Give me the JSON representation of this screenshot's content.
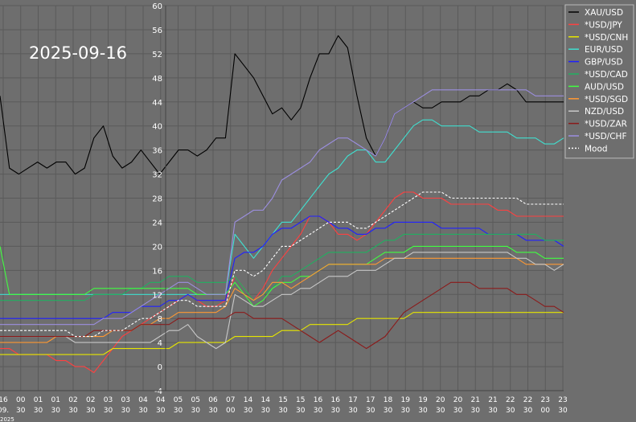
{
  "date_stamp": "2025-09-16",
  "chart_data": {
    "type": "line",
    "title": "",
    "xlabel": "",
    "ylabel": "",
    "ylim": [
      -4,
      60
    ],
    "yticks": [
      -4,
      0,
      4,
      8,
      12,
      16,
      20,
      24,
      28,
      32,
      36,
      40,
      44,
      48,
      52,
      56,
      60
    ],
    "grid": true,
    "legend_position": "top-right",
    "colors": {
      "background": "#6e6e6e",
      "grid": "#5a5a5a",
      "text": "#ffffff"
    },
    "xticks": [
      {
        "day": "16",
        "time": "09."
      },
      {
        "day": "00",
        "time": "30"
      },
      {
        "day": "01",
        "time": "30"
      },
      {
        "day": "01",
        "time": "30"
      },
      {
        "day": "02",
        "time": "30"
      },
      {
        "day": "02",
        "time": "30"
      },
      {
        "day": "03",
        "time": "30"
      },
      {
        "day": "03",
        "time": "30"
      },
      {
        "day": "04",
        "time": "30"
      },
      {
        "day": "04",
        "time": "30"
      },
      {
        "day": "05",
        "time": "30"
      },
      {
        "day": "05",
        "time": "30"
      },
      {
        "day": "06",
        "time": "30"
      },
      {
        "day": "07",
        "time": "00"
      },
      {
        "day": "14",
        "time": "30"
      },
      {
        "day": "14",
        "time": "30"
      },
      {
        "day": "15",
        "time": "30"
      },
      {
        "day": "15",
        "time": "30"
      },
      {
        "day": "16",
        "time": "30"
      },
      {
        "day": "16",
        "time": "30"
      },
      {
        "day": "17",
        "time": "30"
      },
      {
        "day": "17",
        "time": "30"
      },
      {
        "day": "18",
        "time": "30"
      },
      {
        "day": "19",
        "time": "30"
      },
      {
        "day": "19",
        "time": "30"
      },
      {
        "day": "20",
        "time": "30"
      },
      {
        "day": "20",
        "time": "30"
      },
      {
        "day": "21",
        "time": "30"
      },
      {
        "day": "21",
        "time": "30"
      },
      {
        "day": "22",
        "time": "30"
      },
      {
        "day": "22",
        "time": "30"
      },
      {
        "day": "23",
        "time": "00"
      },
      {
        "day": "23",
        "time": "30"
      }
    ],
    "xtick_edge_label": "2025",
    "series": [
      {
        "name": "XAU/USD",
        "color": "#000000",
        "values": [
          45,
          33,
          32,
          33,
          34,
          33,
          34,
          34,
          32,
          33,
          38,
          40,
          35,
          33,
          34,
          36,
          34,
          32,
          34,
          36,
          36,
          35,
          36,
          38,
          38,
          52,
          50,
          48,
          45,
          42,
          43,
          41,
          43,
          48,
          52,
          52,
          55,
          53,
          45,
          38,
          35,
          38,
          42,
          43,
          44,
          43,
          43,
          44,
          44,
          44,
          45,
          45,
          46,
          46,
          47,
          46,
          44,
          44,
          44,
          44,
          44
        ]
      },
      {
        "name": "*USD/JPY",
        "color": "#ff4040",
        "values": [
          3,
          3,
          2,
          2,
          2,
          2,
          1,
          1,
          0,
          0,
          -1,
          1,
          3,
          5,
          6,
          7,
          8,
          9,
          10,
          11,
          12,
          11,
          10,
          10,
          11,
          15,
          13,
          11,
          13,
          16,
          18,
          20,
          22,
          25,
          25,
          24,
          22,
          22,
          21,
          22,
          24,
          26,
          28,
          29,
          29,
          28,
          28,
          28,
          27,
          27,
          27,
          27,
          27,
          26,
          26,
          25,
          25,
          25,
          25,
          25,
          25
        ]
      },
      {
        "name": "*USD/CNH",
        "color": "#e6e600",
        "values": [
          2,
          2,
          2,
          2,
          2,
          2,
          2,
          2,
          2,
          2,
          2,
          2,
          3,
          3,
          3,
          3,
          3,
          3,
          3,
          4,
          4,
          4,
          4,
          4,
          4,
          5,
          5,
          5,
          5,
          5,
          6,
          6,
          6,
          7,
          7,
          7,
          7,
          7,
          8,
          8,
          8,
          8,
          8,
          8,
          9,
          9,
          9,
          9,
          9,
          9,
          9,
          9,
          9,
          9,
          9,
          9,
          9,
          9,
          9,
          9,
          9
        ]
      },
      {
        "name": "EUR/USD",
        "color": "#40e0d0",
        "values": [
          12,
          12,
          12,
          12,
          12,
          12,
          12,
          12,
          12,
          12,
          12,
          12,
          12,
          12,
          12,
          12,
          12,
          12,
          12,
          12,
          12,
          12,
          12,
          12,
          12,
          22,
          20,
          18,
          20,
          22,
          24,
          24,
          26,
          28,
          30,
          32,
          33,
          35,
          36,
          36,
          34,
          34,
          36,
          38,
          40,
          41,
          41,
          40,
          40,
          40,
          40,
          39,
          39,
          39,
          39,
          38,
          38,
          38,
          37,
          37,
          38
        ]
      },
      {
        "name": "GBP/USD",
        "color": "#2020ff",
        "values": [
          8,
          8,
          8,
          8,
          8,
          8,
          8,
          8,
          8,
          8,
          8,
          8,
          9,
          9,
          9,
          10,
          10,
          10,
          11,
          11,
          12,
          11,
          11,
          11,
          11,
          18,
          19,
          19,
          20,
          22,
          23,
          23,
          24,
          25,
          25,
          24,
          23,
          23,
          22,
          22,
          23,
          23,
          24,
          24,
          24,
          24,
          24,
          23,
          23,
          23,
          23,
          23,
          22,
          22,
          22,
          22,
          21,
          21,
          21,
          21,
          20
        ]
      },
      {
        "name": "*USD/CAD",
        "color": "#20b060",
        "values": [
          11,
          11,
          11,
          11,
          11,
          11,
          11,
          11,
          11,
          11,
          12,
          12,
          12,
          12,
          13,
          13,
          14,
          14,
          15,
          15,
          15,
          14,
          14,
          14,
          14,
          15,
          13,
          11,
          12,
          13,
          15,
          15,
          16,
          17,
          18,
          19,
          19,
          19,
          19,
          19,
          20,
          21,
          21,
          22,
          22,
          22,
          22,
          22,
          22,
          22,
          22,
          22,
          22,
          22,
          22,
          22,
          22,
          22,
          21,
          21,
          21
        ]
      },
      {
        "name": "AUD/USD",
        "color": "#40ff40",
        "values": [
          20,
          12,
          12,
          12,
          12,
          12,
          12,
          12,
          12,
          12,
          13,
          13,
          13,
          13,
          13,
          13,
          13,
          13,
          13,
          13,
          13,
          12,
          12,
          12,
          12,
          14,
          12,
          10,
          11,
          13,
          14,
          14,
          15,
          15,
          16,
          17,
          17,
          17,
          17,
          17,
          18,
          19,
          19,
          19,
          20,
          20,
          20,
          20,
          20,
          20,
          20,
          20,
          20,
          20,
          20,
          19,
          19,
          19,
          18,
          18,
          18
        ]
      },
      {
        "name": "*USD/SGD",
        "color": "#ff9933",
        "values": [
          4,
          4,
          4,
          4,
          4,
          4,
          5,
          5,
          5,
          5,
          5,
          5,
          6,
          6,
          6,
          7,
          7,
          8,
          8,
          9,
          9,
          9,
          9,
          9,
          10,
          13,
          12,
          11,
          12,
          14,
          14,
          13,
          14,
          15,
          16,
          17,
          17,
          17,
          17,
          17,
          17,
          18,
          18,
          18,
          18,
          18,
          18,
          18,
          18,
          18,
          18,
          18,
          18,
          18,
          18,
          18,
          17,
          17,
          17,
          17,
          17
        ]
      },
      {
        "name": "NZD/USD",
        "color": "#c8c8c8",
        "values": [
          5,
          5,
          5,
          5,
          5,
          5,
          5,
          5,
          4,
          4,
          4,
          4,
          4,
          4,
          4,
          4,
          4,
          5,
          6,
          6,
          7,
          5,
          4,
          3,
          4,
          12,
          11,
          10,
          10,
          11,
          12,
          12,
          13,
          13,
          14,
          15,
          15,
          15,
          16,
          16,
          16,
          17,
          18,
          18,
          19,
          19,
          19,
          19,
          19,
          19,
          19,
          19,
          19,
          19,
          19,
          18,
          18,
          17,
          17,
          16,
          17
        ]
      },
      {
        "name": "*USD/ZAR",
        "color": "#8b1a1a",
        "values": [
          5,
          5,
          5,
          5,
          5,
          5,
          5,
          5,
          5,
          5,
          6,
          6,
          6,
          6,
          6,
          7,
          7,
          7,
          7,
          8,
          8,
          8,
          8,
          8,
          8,
          9,
          9,
          8,
          8,
          8,
          8,
          7,
          6,
          5,
          4,
          5,
          6,
          5,
          4,
          3,
          4,
          5,
          7,
          9,
          10,
          11,
          12,
          13,
          14,
          14,
          14,
          13,
          13,
          13,
          13,
          12,
          12,
          11,
          10,
          10,
          9
        ]
      },
      {
        "name": "*USD/CHF",
        "color": "#9c8fe0",
        "values": [
          7,
          7,
          7,
          7,
          7,
          7,
          7,
          7,
          7,
          7,
          7,
          8,
          8,
          8,
          9,
          10,
          11,
          12,
          13,
          14,
          14,
          13,
          12,
          12,
          12,
          24,
          25,
          26,
          26,
          28,
          31,
          32,
          33,
          34,
          36,
          37,
          38,
          38,
          37,
          36,
          35,
          38,
          42,
          43,
          44,
          45,
          46,
          46,
          46,
          46,
          46,
          46,
          46,
          46,
          46,
          46,
          46,
          45,
          45,
          45,
          45
        ]
      },
      {
        "name": "Mood",
        "color": "#ffffff",
        "dashed": true,
        "values": [
          6,
          6,
          6,
          6,
          6,
          6,
          6,
          6,
          5,
          5,
          5,
          6,
          6,
          6,
          7,
          8,
          8,
          9,
          10,
          11,
          11,
          10,
          10,
          10,
          10,
          16,
          16,
          15,
          16,
          18,
          20,
          20,
          21,
          22,
          23,
          24,
          24,
          24,
          23,
          23,
          24,
          25,
          26,
          27,
          28,
          29,
          29,
          29,
          28,
          28,
          28,
          28,
          28,
          28,
          28,
          28,
          27,
          27,
          27,
          27,
          27
        ]
      }
    ]
  }
}
